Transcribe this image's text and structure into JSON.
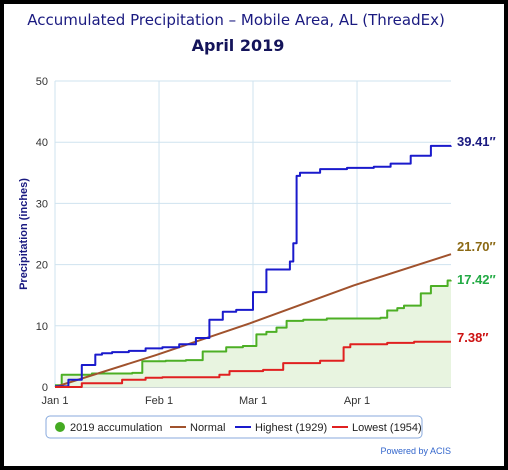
{
  "chart_data": {
    "type": "line",
    "title": "Accumulated Precipitation – Mobile Area, AL (ThreadEx)",
    "subtitle": "April 2019",
    "ylabel": "Precipitation (inches)",
    "xlabel": "",
    "ylim": [
      0,
      50
    ],
    "yticks": [
      "0",
      "10",
      "20",
      "30",
      "40",
      "50"
    ],
    "xlim": [
      1,
      119
    ],
    "xticks": [
      {
        "day": 1,
        "label": "Jan 1"
      },
      {
        "day": 32,
        "label": "Feb 1"
      },
      {
        "day": 60,
        "label": "Mar 1"
      },
      {
        "day": 91,
        "label": "Apr 1"
      }
    ],
    "grid": true,
    "legend_position": "bottom",
    "credit": "Powered by ACIS",
    "series": [
      {
        "name": "2019 accumulation",
        "key": "acc",
        "color": "#4caf25",
        "fill": "#e8f4e0",
        "end_label": "17.42″",
        "end_label_color": "#22aa44",
        "step": true,
        "points": [
          [
            1,
            0.3
          ],
          [
            3,
            2.0
          ],
          [
            12,
            2.2
          ],
          [
            24,
            2.3
          ],
          [
            27,
            4.2
          ],
          [
            34,
            4.3
          ],
          [
            40,
            4.4
          ],
          [
            45,
            5.8
          ],
          [
            52,
            6.5
          ],
          [
            57,
            6.7
          ],
          [
            61,
            8.6
          ],
          [
            64,
            9.0
          ],
          [
            67,
            9.7
          ],
          [
            70,
            10.8
          ],
          [
            75,
            11.0
          ],
          [
            82,
            11.2
          ],
          [
            98,
            11.3
          ],
          [
            100,
            12.5
          ],
          [
            103,
            12.9
          ],
          [
            105,
            13.3
          ],
          [
            110,
            15.3
          ],
          [
            113,
            16.5
          ],
          [
            118,
            17.4
          ],
          [
            119,
            17.42
          ]
        ]
      },
      {
        "name": "Normal",
        "key": "normal",
        "color": "#a0522d",
        "end_label": "21.70″",
        "end_label_color": "#8b6914",
        "step": false,
        "points": [
          [
            1,
            0
          ],
          [
            31,
            5.2
          ],
          [
            59,
            10.4
          ],
          [
            90,
            16.6
          ],
          [
            119,
            21.7
          ]
        ]
      },
      {
        "name": "Highest (1929)",
        "key": "high",
        "color": "#1a1acc",
        "end_label": "39.41″",
        "end_label_color": "#1a1a80",
        "step": true,
        "points": [
          [
            1,
            0.1
          ],
          [
            5,
            1.2
          ],
          [
            9,
            3.6
          ],
          [
            13,
            5.3
          ],
          [
            15,
            5.5
          ],
          [
            18,
            5.7
          ],
          [
            23,
            5.9
          ],
          [
            28,
            6.3
          ],
          [
            33,
            6.5
          ],
          [
            38,
            7.0
          ],
          [
            43,
            8.0
          ],
          [
            47,
            11.0
          ],
          [
            51,
            12.3
          ],
          [
            55,
            12.6
          ],
          [
            60,
            15.5
          ],
          [
            64,
            19.2
          ],
          [
            71,
            20.5
          ],
          [
            72,
            23.5
          ],
          [
            73,
            34.5
          ],
          [
            74,
            35.0
          ],
          [
            80,
            35.6
          ],
          [
            88,
            35.8
          ],
          [
            96,
            36.0
          ],
          [
            101,
            36.5
          ],
          [
            107,
            37.8
          ],
          [
            113,
            39.4
          ],
          [
            119,
            39.41
          ]
        ]
      },
      {
        "name": "Lowest (1954)",
        "key": "low",
        "color": "#e02020",
        "end_label": "7.38″",
        "end_label_color": "#cc1111",
        "step": true,
        "points": [
          [
            1,
            0
          ],
          [
            9,
            0.6
          ],
          [
            21,
            1.2
          ],
          [
            28,
            1.5
          ],
          [
            33,
            1.6
          ],
          [
            50,
            2.0
          ],
          [
            53,
            2.6
          ],
          [
            63,
            2.8
          ],
          [
            69,
            3.9
          ],
          [
            80,
            4.3
          ],
          [
            87,
            6.5
          ],
          [
            89,
            7.0
          ],
          [
            100,
            7.2
          ],
          [
            108,
            7.38
          ],
          [
            119,
            7.38
          ]
        ]
      }
    ]
  }
}
